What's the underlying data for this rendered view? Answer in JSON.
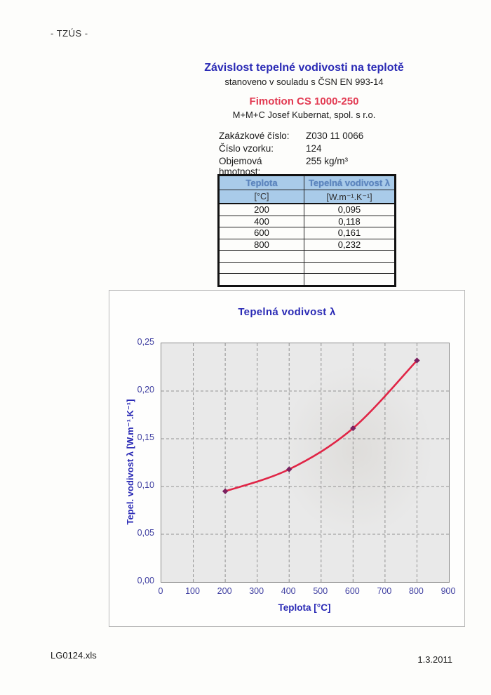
{
  "page": {
    "watermark": "- TZÚS -",
    "footer_left": "LG0124.xls",
    "footer_right": "1.3.2011"
  },
  "header": {
    "title": "Závislost tepelné vodivosti na teplotě",
    "subtitle": "stanoveno v souladu s ČSN EN 993-14",
    "product": "Fimotion CS 1000-250",
    "company": "M+M+C Josef Kubernat, spol. s r.o."
  },
  "info_fields": [
    {
      "label": "Zakázkové číslo:",
      "value": "Z030 11 0066"
    },
    {
      "label": "Číslo vzorku:",
      "value": "124"
    },
    {
      "label": "Objemová hmotnost:",
      "value": "255 kg/m³"
    }
  ],
  "table": {
    "col1_header": "Teplota",
    "col1_unit": "[°C]",
    "col2_header": "Tepelná vodivost λ",
    "col2_unit": "[W.m⁻¹.K⁻¹]",
    "rows": [
      {
        "teplota": "200",
        "vodivost": "0,095"
      },
      {
        "teplota": "400",
        "vodivost": "0,118"
      },
      {
        "teplota": "600",
        "vodivost": "0,161"
      },
      {
        "teplota": "800",
        "vodivost": "0,232"
      },
      {
        "teplota": "",
        "vodivost": ""
      },
      {
        "teplota": "",
        "vodivost": ""
      },
      {
        "teplota": "",
        "vodivost": ""
      }
    ]
  },
  "chart_data": {
    "type": "line",
    "title": "Tepelná vodivost λ",
    "xlabel": "Teplota [°C]",
    "ylabel": "Tepel. vodivost λ [W.m⁻¹.K⁻¹]",
    "x": [
      200,
      400,
      600,
      800
    ],
    "y": [
      0.095,
      0.118,
      0.161,
      0.232
    ],
    "xlim": [
      0,
      900
    ],
    "ylim": [
      0,
      0.25
    ],
    "x_ticks": [
      0,
      100,
      200,
      300,
      400,
      500,
      600,
      700,
      800,
      900
    ],
    "x_tick_labels": [
      "0",
      "100",
      "200",
      "300",
      "400",
      "500",
      "600",
      "700",
      "800",
      "900"
    ],
    "y_ticks": [
      0,
      0.05,
      0.1,
      0.15,
      0.2,
      0.25
    ],
    "y_tick_labels": [
      "0,00",
      "0,05",
      "0,10",
      "0,15",
      "0,20",
      "0,25"
    ],
    "grid": true,
    "grid_style": "dashed",
    "legend": "none",
    "line_color": "#e02546",
    "marker": "diamond",
    "marker_color": "#7b2160",
    "grid_color": "#929292",
    "plot_bg": "#e9e9e9",
    "accent_blue": "#2a2ab5",
    "accent_red": "#e23a52"
  }
}
